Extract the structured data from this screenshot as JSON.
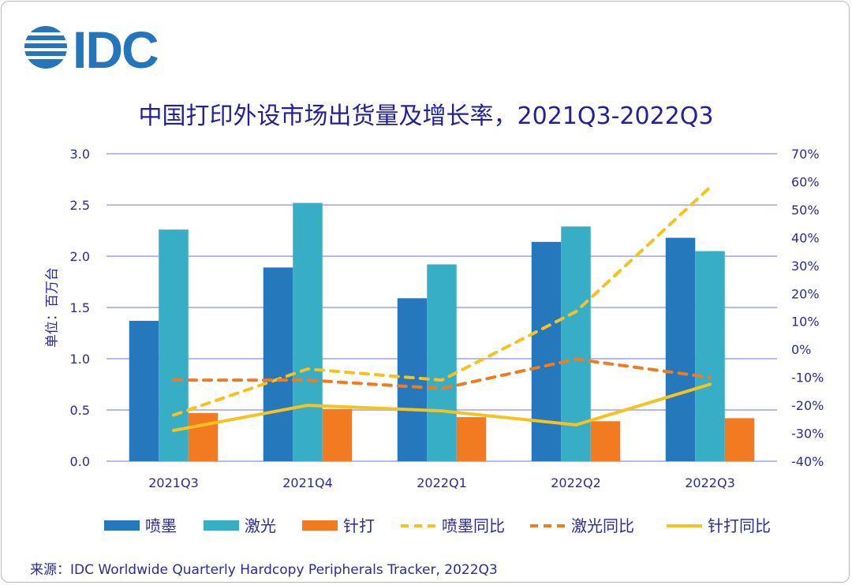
{
  "logo": {
    "text": "IDC",
    "color": "#2475bb"
  },
  "chart_data": {
    "type": "bar+line",
    "title": "中国打印外设市场出货量及增长率，2021Q3-2022Q3",
    "ylabel": "单位：百万台",
    "categories": [
      "2021Q3",
      "2021Q4",
      "2022Q1",
      "2022Q2",
      "2022Q3"
    ],
    "ylim": [
      0,
      3.0
    ],
    "yticks": [
      "0.0",
      "0.5",
      "1.0",
      "1.5",
      "2.0",
      "2.5",
      "3.0"
    ],
    "y2lim": [
      -40,
      70
    ],
    "y2ticks": [
      "-40%",
      "-30%",
      "-20%",
      "-10%",
      "0%",
      "10%",
      "20%",
      "30%",
      "40%",
      "50%",
      "60%",
      "70%"
    ],
    "grid": true,
    "legend_position": "bottom",
    "bar_series": [
      {
        "name": "喷墨",
        "color": "#2478bb",
        "values": [
          1.37,
          1.89,
          1.59,
          2.14,
          2.18
        ]
      },
      {
        "name": "激光",
        "color": "#37adc6",
        "values": [
          2.26,
          2.52,
          1.92,
          2.29,
          2.05
        ]
      },
      {
        "name": "针打",
        "color": "#f27b22",
        "values": [
          0.47,
          0.51,
          0.43,
          0.39,
          0.42
        ]
      }
    ],
    "line_series": [
      {
        "name": "喷墨同比",
        "color": "#f5c21f",
        "dashed": true,
        "values": [
          -23.5,
          -7,
          -11,
          13.5,
          58
        ]
      },
      {
        "name": "激光同比",
        "color": "#f27b22",
        "dashed": true,
        "values": [
          -11,
          -11,
          -14,
          -3.5,
          -10
        ]
      },
      {
        "name": "针打同比",
        "color": "#f5c21f",
        "dashed": false,
        "values": [
          -29,
          -20,
          -22,
          -27,
          -12.5
        ]
      }
    ]
  },
  "source": "来源：IDC Worldwide Quarterly Hardcopy Peripherals Tracker, 2022Q3"
}
